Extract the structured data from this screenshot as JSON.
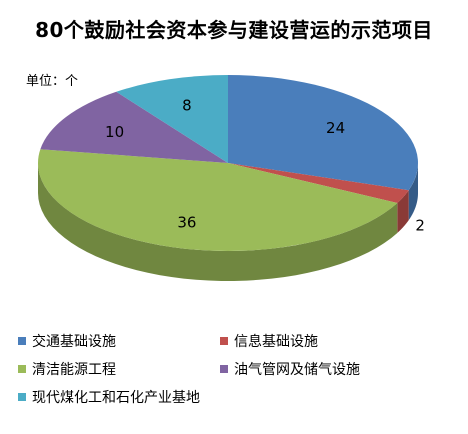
{
  "chart_data": {
    "type": "pie",
    "title": "80个鼓励社会资本参与建设营运的示范项目",
    "unit_label": "单位：个",
    "categories": [
      "交通基础设施",
      "信息基础设施",
      "清洁能源工程",
      "油气管网及储气设施",
      "现代煤化工和石化产业基地"
    ],
    "values": [
      24,
      2,
      36,
      10,
      8
    ],
    "colors": [
      "#4a7ebb",
      "#c0504d",
      "#9bbb59",
      "#8064a2",
      "#4bacc6"
    ],
    "value_labels": [
      "24",
      "2",
      "36",
      "10",
      "8"
    ],
    "legend_position": "bottom"
  }
}
